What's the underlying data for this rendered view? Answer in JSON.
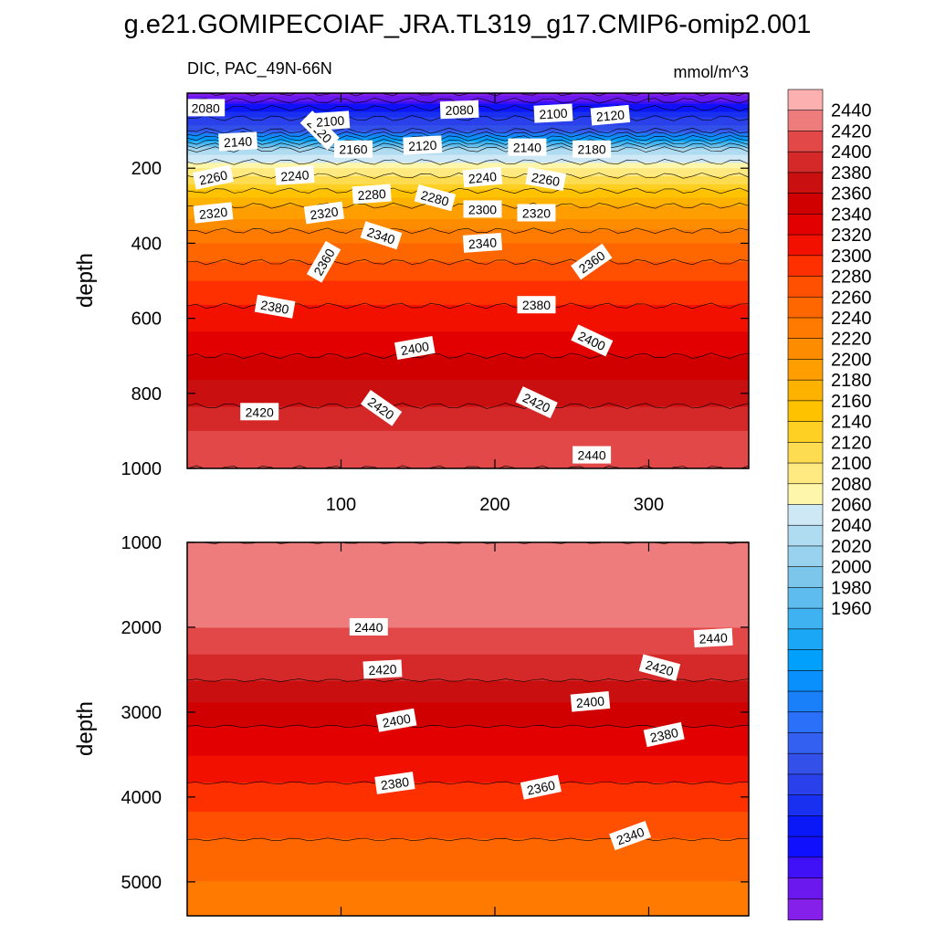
{
  "title": "g.e21.GOMIPECOIAF_JRA.TL319_g17.CMIP6-omip2.001",
  "chart_data": {
    "type": "contour",
    "variable_label": "DIC, PAC_49N-66N",
    "units_label": "mmol/m^3",
    "x_ticks": [
      "100",
      "200",
      "300"
    ],
    "x_range": [
      0,
      365
    ],
    "panels": [
      {
        "ylabel": "depth",
        "y_range": [
          0,
          1000
        ],
        "y_ticks": [
          "200",
          "400",
          "600",
          "800",
          "1000"
        ],
        "y_tick_values": [
          200,
          400,
          600,
          800,
          1000
        ],
        "depth_profile": [
          [
            0,
            2060
          ],
          [
            50,
            2110
          ],
          [
            100,
            2140
          ],
          [
            150,
            2240
          ],
          [
            200,
            2270
          ],
          [
            300,
            2320
          ],
          [
            400,
            2350
          ],
          [
            500,
            2370
          ],
          [
            600,
            2385
          ],
          [
            700,
            2400
          ],
          [
            800,
            2415
          ],
          [
            900,
            2430
          ],
          [
            1000,
            2440
          ]
        ],
        "contour_labels": [
          {
            "text": "2080",
            "x": 12,
            "d": 40,
            "rot": 0
          },
          {
            "text": "2120",
            "x": 86,
            "d": 100,
            "rot": 45
          },
          {
            "text": "2100",
            "x": 93,
            "d": 75,
            "rot": -4
          },
          {
            "text": "2080",
            "x": 177,
            "d": 45,
            "rot": -2
          },
          {
            "text": "2100",
            "x": 238,
            "d": 55,
            "rot": -3
          },
          {
            "text": "2120",
            "x": 275,
            "d": 60,
            "rot": -5
          },
          {
            "text": "2140",
            "x": 33,
            "d": 130,
            "rot": -3
          },
          {
            "text": "2160",
            "x": 108,
            "d": 150,
            "rot": 0
          },
          {
            "text": "2120",
            "x": 153,
            "d": 140,
            "rot": -3
          },
          {
            "text": "2140",
            "x": 221,
            "d": 145,
            "rot": 0
          },
          {
            "text": "2180",
            "x": 263,
            "d": 150,
            "rot": 0
          },
          {
            "text": "2260",
            "x": 17,
            "d": 225,
            "rot": -12
          },
          {
            "text": "2240",
            "x": 70,
            "d": 220,
            "rot": -4
          },
          {
            "text": "2280",
            "x": 120,
            "d": 270,
            "rot": -4
          },
          {
            "text": "2280",
            "x": 161,
            "d": 280,
            "rot": 15
          },
          {
            "text": "2240",
            "x": 192,
            "d": 225,
            "rot": -5
          },
          {
            "text": "2260",
            "x": 233,
            "d": 230,
            "rot": 10
          },
          {
            "text": "2320",
            "x": 17,
            "d": 320,
            "rot": -6
          },
          {
            "text": "2320",
            "x": 89,
            "d": 320,
            "rot": -8
          },
          {
            "text": "2300",
            "x": 192,
            "d": 310,
            "rot": 0
          },
          {
            "text": "2320",
            "x": 227,
            "d": 320,
            "rot": 0
          },
          {
            "text": "2340",
            "x": 126,
            "d": 380,
            "rot": 18
          },
          {
            "text": "2360",
            "x": 89,
            "d": 450,
            "rot": -60
          },
          {
            "text": "2340",
            "x": 192,
            "d": 400,
            "rot": -4
          },
          {
            "text": "2360",
            "x": 263,
            "d": 450,
            "rot": -35
          },
          {
            "text": "2380",
            "x": 57,
            "d": 570,
            "rot": 10
          },
          {
            "text": "2380",
            "x": 227,
            "d": 565,
            "rot": 0
          },
          {
            "text": "2400",
            "x": 263,
            "d": 660,
            "rot": 25
          },
          {
            "text": "2400",
            "x": 148,
            "d": 680,
            "rot": -10
          },
          {
            "text": "2420",
            "x": 227,
            "d": 825,
            "rot": 25
          },
          {
            "text": "2420",
            "x": 126,
            "d": 840,
            "rot": 35
          },
          {
            "text": "2420",
            "x": 47,
            "d": 850,
            "rot": 0
          },
          {
            "text": "2440",
            "x": 263,
            "d": 965,
            "rot": 0
          }
        ]
      },
      {
        "ylabel": "depth",
        "y_range": [
          1000,
          5400
        ],
        "y_ticks": [
          "1000",
          "2000",
          "3000",
          "4000",
          "5000"
        ],
        "y_tick_values": [
          1000,
          2000,
          3000,
          4000,
          5000
        ],
        "depth_profile": [
          [
            1000,
            2440
          ],
          [
            1500,
            2445
          ],
          [
            2000,
            2440
          ],
          [
            2500,
            2425
          ],
          [
            3000,
            2405
          ],
          [
            3500,
            2390
          ],
          [
            4000,
            2375
          ],
          [
            4500,
            2360
          ],
          [
            5000,
            2350
          ],
          [
            5400,
            2345
          ]
        ],
        "contour_labels": [
          {
            "text": "2440",
            "x": 118,
            "d": 2000,
            "rot": 0
          },
          {
            "text": "2440",
            "x": 342,
            "d": 2130,
            "rot": -3
          },
          {
            "text": "2420",
            "x": 127,
            "d": 2500,
            "rot": -3
          },
          {
            "text": "2420",
            "x": 307,
            "d": 2480,
            "rot": 15
          },
          {
            "text": "2400",
            "x": 136,
            "d": 3100,
            "rot": -10
          },
          {
            "text": "2400",
            "x": 262,
            "d": 2880,
            "rot": -5
          },
          {
            "text": "2380",
            "x": 310,
            "d": 3270,
            "rot": -12
          },
          {
            "text": "2380",
            "x": 135,
            "d": 3840,
            "rot": -8
          },
          {
            "text": "2360",
            "x": 230,
            "d": 3890,
            "rot": -12
          },
          {
            "text": "2340",
            "x": 288,
            "d": 4460,
            "rot": -20
          }
        ]
      }
    ],
    "colorbar": {
      "labels": [
        "2440",
        "2420",
        "2400",
        "2380",
        "2360",
        "2340",
        "2320",
        "2300",
        "2280",
        "2260",
        "2240",
        "2220",
        "2200",
        "2180",
        "2160",
        "2140",
        "2120",
        "2100",
        "2080",
        "2060",
        "2040",
        "2020",
        "2000",
        "1980",
        "1960"
      ],
      "label_values": [
        2440,
        2420,
        2400,
        2380,
        2360,
        2340,
        2320,
        2300,
        2280,
        2260,
        2240,
        2220,
        2200,
        2180,
        2160,
        2140,
        2120,
        2100,
        2080,
        2060,
        2040,
        2020,
        2000,
        1980,
        1960
      ],
      "colors": [
        "#fdb0b0",
        "#ef7c7c",
        "#e24848",
        "#d52828",
        "#c90f0f",
        "#d10000",
        "#e30000",
        "#f21000",
        "#fe3000",
        "#fe5000",
        "#fe6600",
        "#fe7a00",
        "#fe8c00",
        "#fe9e00",
        "#feb200",
        "#fec200",
        "#fed024",
        "#fedc52",
        "#feea80",
        "#fef6aa",
        "#cfe8f6",
        "#b0dcf2",
        "#98d2ee",
        "#7cc6ec",
        "#5ebcef",
        "#3fb2f2",
        "#1aa8f6",
        "#00a0fc",
        "#0a90fc",
        "#1a80fa",
        "#2a70f8",
        "#3360f0",
        "#3350e8",
        "#2a40ea",
        "#1a30f0",
        "#0a18f8",
        "#1010fc",
        "#4010f6",
        "#6a18ee",
        "#8420ea"
      ]
    }
  }
}
